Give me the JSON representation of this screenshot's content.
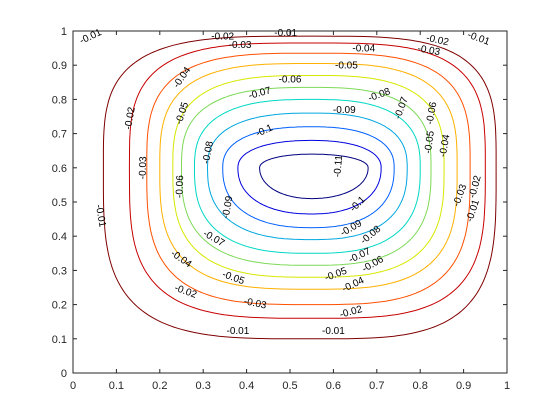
{
  "chart_data": {
    "type": "contour",
    "title": "",
    "xlabel": "",
    "ylabel": "",
    "xlim": [
      0,
      1
    ],
    "ylim": [
      0,
      1
    ],
    "grid": false,
    "box": true,
    "x_ticks": [
      0,
      0.1,
      0.2,
      0.3,
      0.4,
      0.5,
      0.6,
      0.7,
      0.8,
      0.9,
      1
    ],
    "y_ticks": [
      0,
      0.1,
      0.2,
      0.3,
      0.4,
      0.5,
      0.6,
      0.7,
      0.8,
      0.9,
      1
    ],
    "x_tick_labels": [
      "0",
      "0.1",
      "0.2",
      "0.3",
      "0.4",
      "0.5",
      "0.6",
      "0.7",
      "0.8",
      "0.9",
      "1"
    ],
    "y_tick_labels": [
      "0",
      "0.1",
      "0.2",
      "0.3",
      "0.4",
      "0.5",
      "0.6",
      "0.7",
      "0.8",
      "0.9",
      "1"
    ],
    "center": [
      0.55,
      0.6
    ],
    "levels": [
      {
        "value": -0.01,
        "label": "-0.01",
        "color": "#7f0000",
        "extent": {
          "left": 0.07,
          "right": 0.975,
          "bottom": 0.1,
          "top": 0.985
        }
      },
      {
        "value": -0.02,
        "label": "-0.02",
        "color": "#c80000",
        "extent": {
          "left": 0.13,
          "right": 0.95,
          "bottom": 0.16,
          "top": 0.965
        }
      },
      {
        "value": -0.03,
        "label": "-0.03",
        "color": "#ff5000",
        "extent": {
          "left": 0.17,
          "right": 0.915,
          "bottom": 0.2,
          "top": 0.935
        }
      },
      {
        "value": -0.04,
        "label": "-0.04",
        "color": "#ffb000",
        "extent": {
          "left": 0.2,
          "right": 0.885,
          "bottom": 0.245,
          "top": 0.905
        }
      },
      {
        "value": -0.05,
        "label": "-0.05",
        "color": "#d6e800",
        "extent": {
          "left": 0.23,
          "right": 0.855,
          "bottom": 0.28,
          "top": 0.87
        }
      },
      {
        "value": -0.06,
        "label": "-0.06",
        "color": "#7dd957",
        "extent": {
          "left": 0.25,
          "right": 0.825,
          "bottom": 0.315,
          "top": 0.835
        }
      },
      {
        "value": -0.07,
        "label": "-0.07",
        "color": "#00d8c4",
        "extent": {
          "left": 0.28,
          "right": 0.8,
          "bottom": 0.35,
          "top": 0.8
        }
      },
      {
        "value": -0.08,
        "label": "-0.08",
        "color": "#00a6e0",
        "extent": {
          "left": 0.31,
          "right": 0.77,
          "bottom": 0.39,
          "top": 0.76
        }
      },
      {
        "value": -0.09,
        "label": "-0.09",
        "color": "#0060ff",
        "extent": {
          "left": 0.345,
          "right": 0.74,
          "bottom": 0.425,
          "top": 0.72
        }
      },
      {
        "value": -0.1,
        "label": "-0.1",
        "color": "#0000dd",
        "extent": {
          "left": 0.38,
          "right": 0.71,
          "bottom": 0.465,
          "top": 0.68
        }
      },
      {
        "value": -0.11,
        "label": "-0.11",
        "color": "#00007f",
        "extent": {
          "left": 0.43,
          "right": 0.68,
          "bottom": 0.51,
          "top": 0.64
        }
      }
    ],
    "contour_labels": [
      {
        "text": "-0.01",
        "x": 0.04,
        "y": 0.985,
        "angle": -25
      },
      {
        "text": "-0.01",
        "x": 0.49,
        "y": 0.995,
        "angle": 0
      },
      {
        "text": "-0.01",
        "x": 0.935,
        "y": 0.98,
        "angle": 20
      },
      {
        "text": "-0.01",
        "x": 0.065,
        "y": 0.46,
        "angle": 80
      },
      {
        "text": "-0.01",
        "x": 0.92,
        "y": 0.475,
        "angle": -72
      },
      {
        "text": "-0.01",
        "x": 0.38,
        "y": 0.125,
        "angle": 0
      },
      {
        "text": "-0.01",
        "x": 0.6,
        "y": 0.125,
        "angle": 0
      },
      {
        "text": "-0.02",
        "x": 0.345,
        "y": 0.985,
        "angle": 0
      },
      {
        "text": "-0.02",
        "x": 0.84,
        "y": 0.975,
        "angle": 12
      },
      {
        "text": "-0.02",
        "x": 0.13,
        "y": 0.745,
        "angle": -80
      },
      {
        "text": "-0.02",
        "x": 0.925,
        "y": 0.545,
        "angle": -75
      },
      {
        "text": "-0.02",
        "x": 0.26,
        "y": 0.24,
        "angle": 20
      },
      {
        "text": "-0.02",
        "x": 0.64,
        "y": 0.18,
        "angle": -15
      },
      {
        "text": "-0.03",
        "x": 0.385,
        "y": 0.96,
        "angle": 0
      },
      {
        "text": "-0.03",
        "x": 0.82,
        "y": 0.945,
        "angle": 10
      },
      {
        "text": "-0.03",
        "x": 0.16,
        "y": 0.6,
        "angle": -88
      },
      {
        "text": "-0.03",
        "x": 0.89,
        "y": 0.52,
        "angle": -70
      },
      {
        "text": "-0.03",
        "x": 0.42,
        "y": 0.205,
        "angle": 12
      },
      {
        "text": "-0.04",
        "x": 0.25,
        "y": 0.865,
        "angle": -55
      },
      {
        "text": "-0.04",
        "x": 0.67,
        "y": 0.95,
        "angle": 0
      },
      {
        "text": "-0.04",
        "x": 0.855,
        "y": 0.665,
        "angle": -80
      },
      {
        "text": "-0.04",
        "x": 0.25,
        "y": 0.335,
        "angle": 35
      },
      {
        "text": "-0.04",
        "x": 0.645,
        "y": 0.26,
        "angle": -25
      },
      {
        "text": "-0.05",
        "x": 0.25,
        "y": 0.76,
        "angle": -72
      },
      {
        "text": "-0.05",
        "x": 0.63,
        "y": 0.9,
        "angle": 0
      },
      {
        "text": "-0.05",
        "x": 0.82,
        "y": 0.675,
        "angle": -82
      },
      {
        "text": "-0.05",
        "x": 0.37,
        "y": 0.28,
        "angle": 20
      },
      {
        "text": "-0.05",
        "x": 0.605,
        "y": 0.29,
        "angle": -20
      },
      {
        "text": "-0.06",
        "x": 0.5,
        "y": 0.86,
        "angle": 0
      },
      {
        "text": "-0.06",
        "x": 0.245,
        "y": 0.545,
        "angle": -88
      },
      {
        "text": "-0.06",
        "x": 0.825,
        "y": 0.76,
        "angle": -80
      },
      {
        "text": "-0.06",
        "x": 0.69,
        "y": 0.32,
        "angle": -30
      },
      {
        "text": "-0.07",
        "x": 0.43,
        "y": 0.82,
        "angle": -15
      },
      {
        "text": "-0.07",
        "x": 0.755,
        "y": 0.775,
        "angle": -70
      },
      {
        "text": "-0.07",
        "x": 0.325,
        "y": 0.395,
        "angle": 30
      },
      {
        "text": "-0.07",
        "x": 0.66,
        "y": 0.345,
        "angle": -25
      },
      {
        "text": "-0.08",
        "x": 0.31,
        "y": 0.645,
        "angle": -80
      },
      {
        "text": "-0.08",
        "x": 0.705,
        "y": 0.815,
        "angle": -20
      },
      {
        "text": "-0.08",
        "x": 0.685,
        "y": 0.405,
        "angle": -40
      },
      {
        "text": "-0.09",
        "x": 0.625,
        "y": 0.77,
        "angle": 0
      },
      {
        "text": "-0.09",
        "x": 0.355,
        "y": 0.485,
        "angle": -80
      },
      {
        "text": "-0.09",
        "x": 0.64,
        "y": 0.425,
        "angle": -30
      },
      {
        "text": "-0.1",
        "x": 0.44,
        "y": 0.71,
        "angle": -25
      },
      {
        "text": "-0.1",
        "x": 0.655,
        "y": 0.495,
        "angle": -45
      },
      {
        "text": "-0.11",
        "x": 0.61,
        "y": 0.605,
        "angle": -85
      }
    ]
  }
}
